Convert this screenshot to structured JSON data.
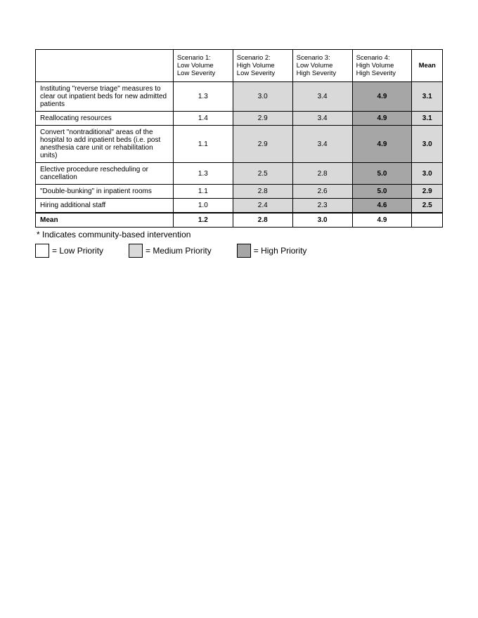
{
  "colors": {
    "low": "#ffffff",
    "medium": "#d9d9d9",
    "high": "#a6a6a6"
  },
  "columns": [
    {
      "line1": "Scenario 1:",
      "line2": "Low Volume",
      "line3": "Low Severity"
    },
    {
      "line1": "Scenario 2:",
      "line2": "High Volume",
      "line3": "Low Severity"
    },
    {
      "line1": "Scenario 3:",
      "line2": "Low Volume",
      "line3": "High Severity"
    },
    {
      "line1": "Scenario 4:",
      "line2": "High Volume",
      "line3": "High Severity"
    }
  ],
  "mean_header": "Mean",
  "rows": [
    {
      "desc": "Instituting \"reverse triage\" measures to clear out inpatient beds for new admitted patients",
      "cells": [
        {
          "v": "1.3",
          "p": "low"
        },
        {
          "v": "3.0",
          "p": "medium"
        },
        {
          "v": "3.4",
          "p": "medium"
        },
        {
          "v": "4.9",
          "p": "high",
          "bold": true
        }
      ],
      "mean": {
        "v": "3.1",
        "p": "medium",
        "bold": true
      }
    },
    {
      "desc": "Reallocating resources",
      "cells": [
        {
          "v": "1.4",
          "p": "low"
        },
        {
          "v": "2.9",
          "p": "medium"
        },
        {
          "v": "3.4",
          "p": "medium"
        },
        {
          "v": "4.9",
          "p": "high",
          "bold": true
        }
      ],
      "mean": {
        "v": "3.1",
        "p": "medium",
        "bold": true
      }
    },
    {
      "desc": "Convert \"nontraditional\" areas of the hospital to add inpatient beds (i.e. post anesthesia care unit or rehabilitation units)",
      "cells": [
        {
          "v": "1.1",
          "p": "low"
        },
        {
          "v": "2.9",
          "p": "medium"
        },
        {
          "v": "3.4",
          "p": "medium"
        },
        {
          "v": "4.9",
          "p": "high",
          "bold": true
        }
      ],
      "mean": {
        "v": "3.0",
        "p": "medium",
        "bold": true
      }
    },
    {
      "desc": "Elective procedure rescheduling or cancellation",
      "cells": [
        {
          "v": "1.3",
          "p": "low"
        },
        {
          "v": "2.5",
          "p": "medium"
        },
        {
          "v": "2.8",
          "p": "medium"
        },
        {
          "v": "5.0",
          "p": "high",
          "bold": true
        }
      ],
      "mean": {
        "v": "3.0",
        "p": "medium",
        "bold": true
      }
    },
    {
      "desc": "\"Double-bunking\" in inpatient rooms",
      "cells": [
        {
          "v": "1.1",
          "p": "low"
        },
        {
          "v": "2.8",
          "p": "medium"
        },
        {
          "v": "2.6",
          "p": "medium"
        },
        {
          "v": "5.0",
          "p": "high",
          "bold": true
        }
      ],
      "mean": {
        "v": "2.9",
        "p": "medium",
        "bold": true
      }
    },
    {
      "desc": "Hiring additional staff",
      "cells": [
        {
          "v": "1.0",
          "p": "low"
        },
        {
          "v": "2.4",
          "p": "medium"
        },
        {
          "v": "2.3",
          "p": "medium"
        },
        {
          "v": "4.6",
          "p": "high",
          "bold": true
        }
      ],
      "mean": {
        "v": "2.5",
        "p": "medium",
        "bold": true
      }
    }
  ],
  "mean_row": {
    "label": "Mean",
    "cells": [
      {
        "v": "1.2"
      },
      {
        "v": "2.8"
      },
      {
        "v": "3.0"
      },
      {
        "v": "4.9"
      }
    ]
  },
  "footnote": "* Indicates community-based intervention",
  "legend": {
    "low": "= Low Priority",
    "medium": "= Medium Priority",
    "high": "= High Priority"
  }
}
